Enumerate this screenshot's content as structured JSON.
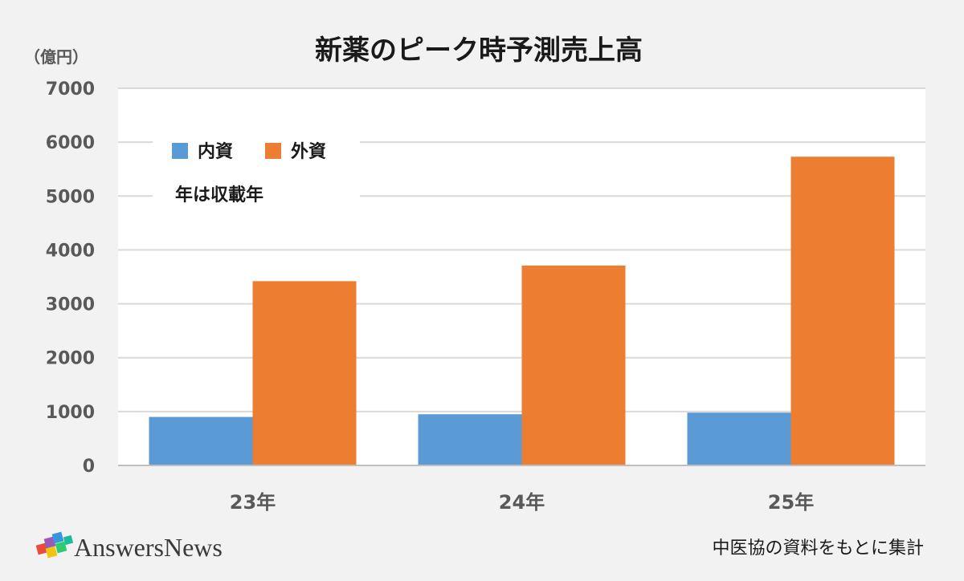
{
  "chart_data": {
    "type": "bar",
    "title": "新薬のピーク時予測売上高",
    "ylabel": "（億円）",
    "categories": [
      "23年",
      "24年",
      "25年"
    ],
    "series": [
      {
        "name": "内資",
        "color": "#5b9bd5",
        "values": [
          900,
          950,
          980
        ]
      },
      {
        "name": "外資",
        "color": "#ed7d31",
        "values": [
          3420,
          3710,
          5730
        ]
      }
    ],
    "ylim": [
      0,
      7000
    ],
    "yticks": [
      "0",
      "1000",
      "2000",
      "3000",
      "4000",
      "5000",
      "6000",
      "7000"
    ],
    "grid": true,
    "legend_position": "top-left"
  },
  "note": "年は収載年",
  "source": "中医協の資料をもとに集計",
  "brand": {
    "name": "AnswersNews",
    "icon": "puzzle-logo-icon"
  }
}
